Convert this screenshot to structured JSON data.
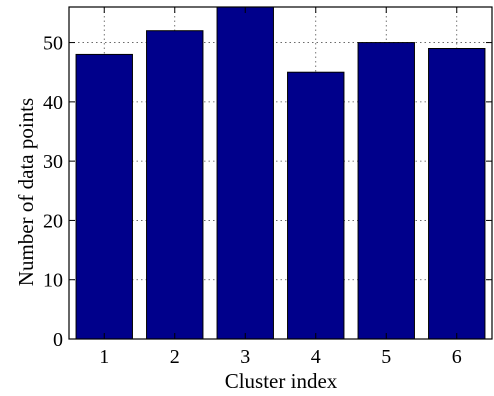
{
  "chart_data": {
    "type": "bar",
    "title": "",
    "xlabel": "Cluster index",
    "ylabel": "Number of data points",
    "categories": [
      "1",
      "2",
      "3",
      "4",
      "5",
      "6"
    ],
    "values": [
      48,
      52,
      56,
      45,
      50,
      49
    ],
    "ylim": [
      0,
      56
    ],
    "yticks": [
      "0",
      "10",
      "20",
      "30",
      "40",
      "50"
    ],
    "grid": true,
    "bar_color": "#00008b",
    "bar_edge_color": "#000000"
  }
}
